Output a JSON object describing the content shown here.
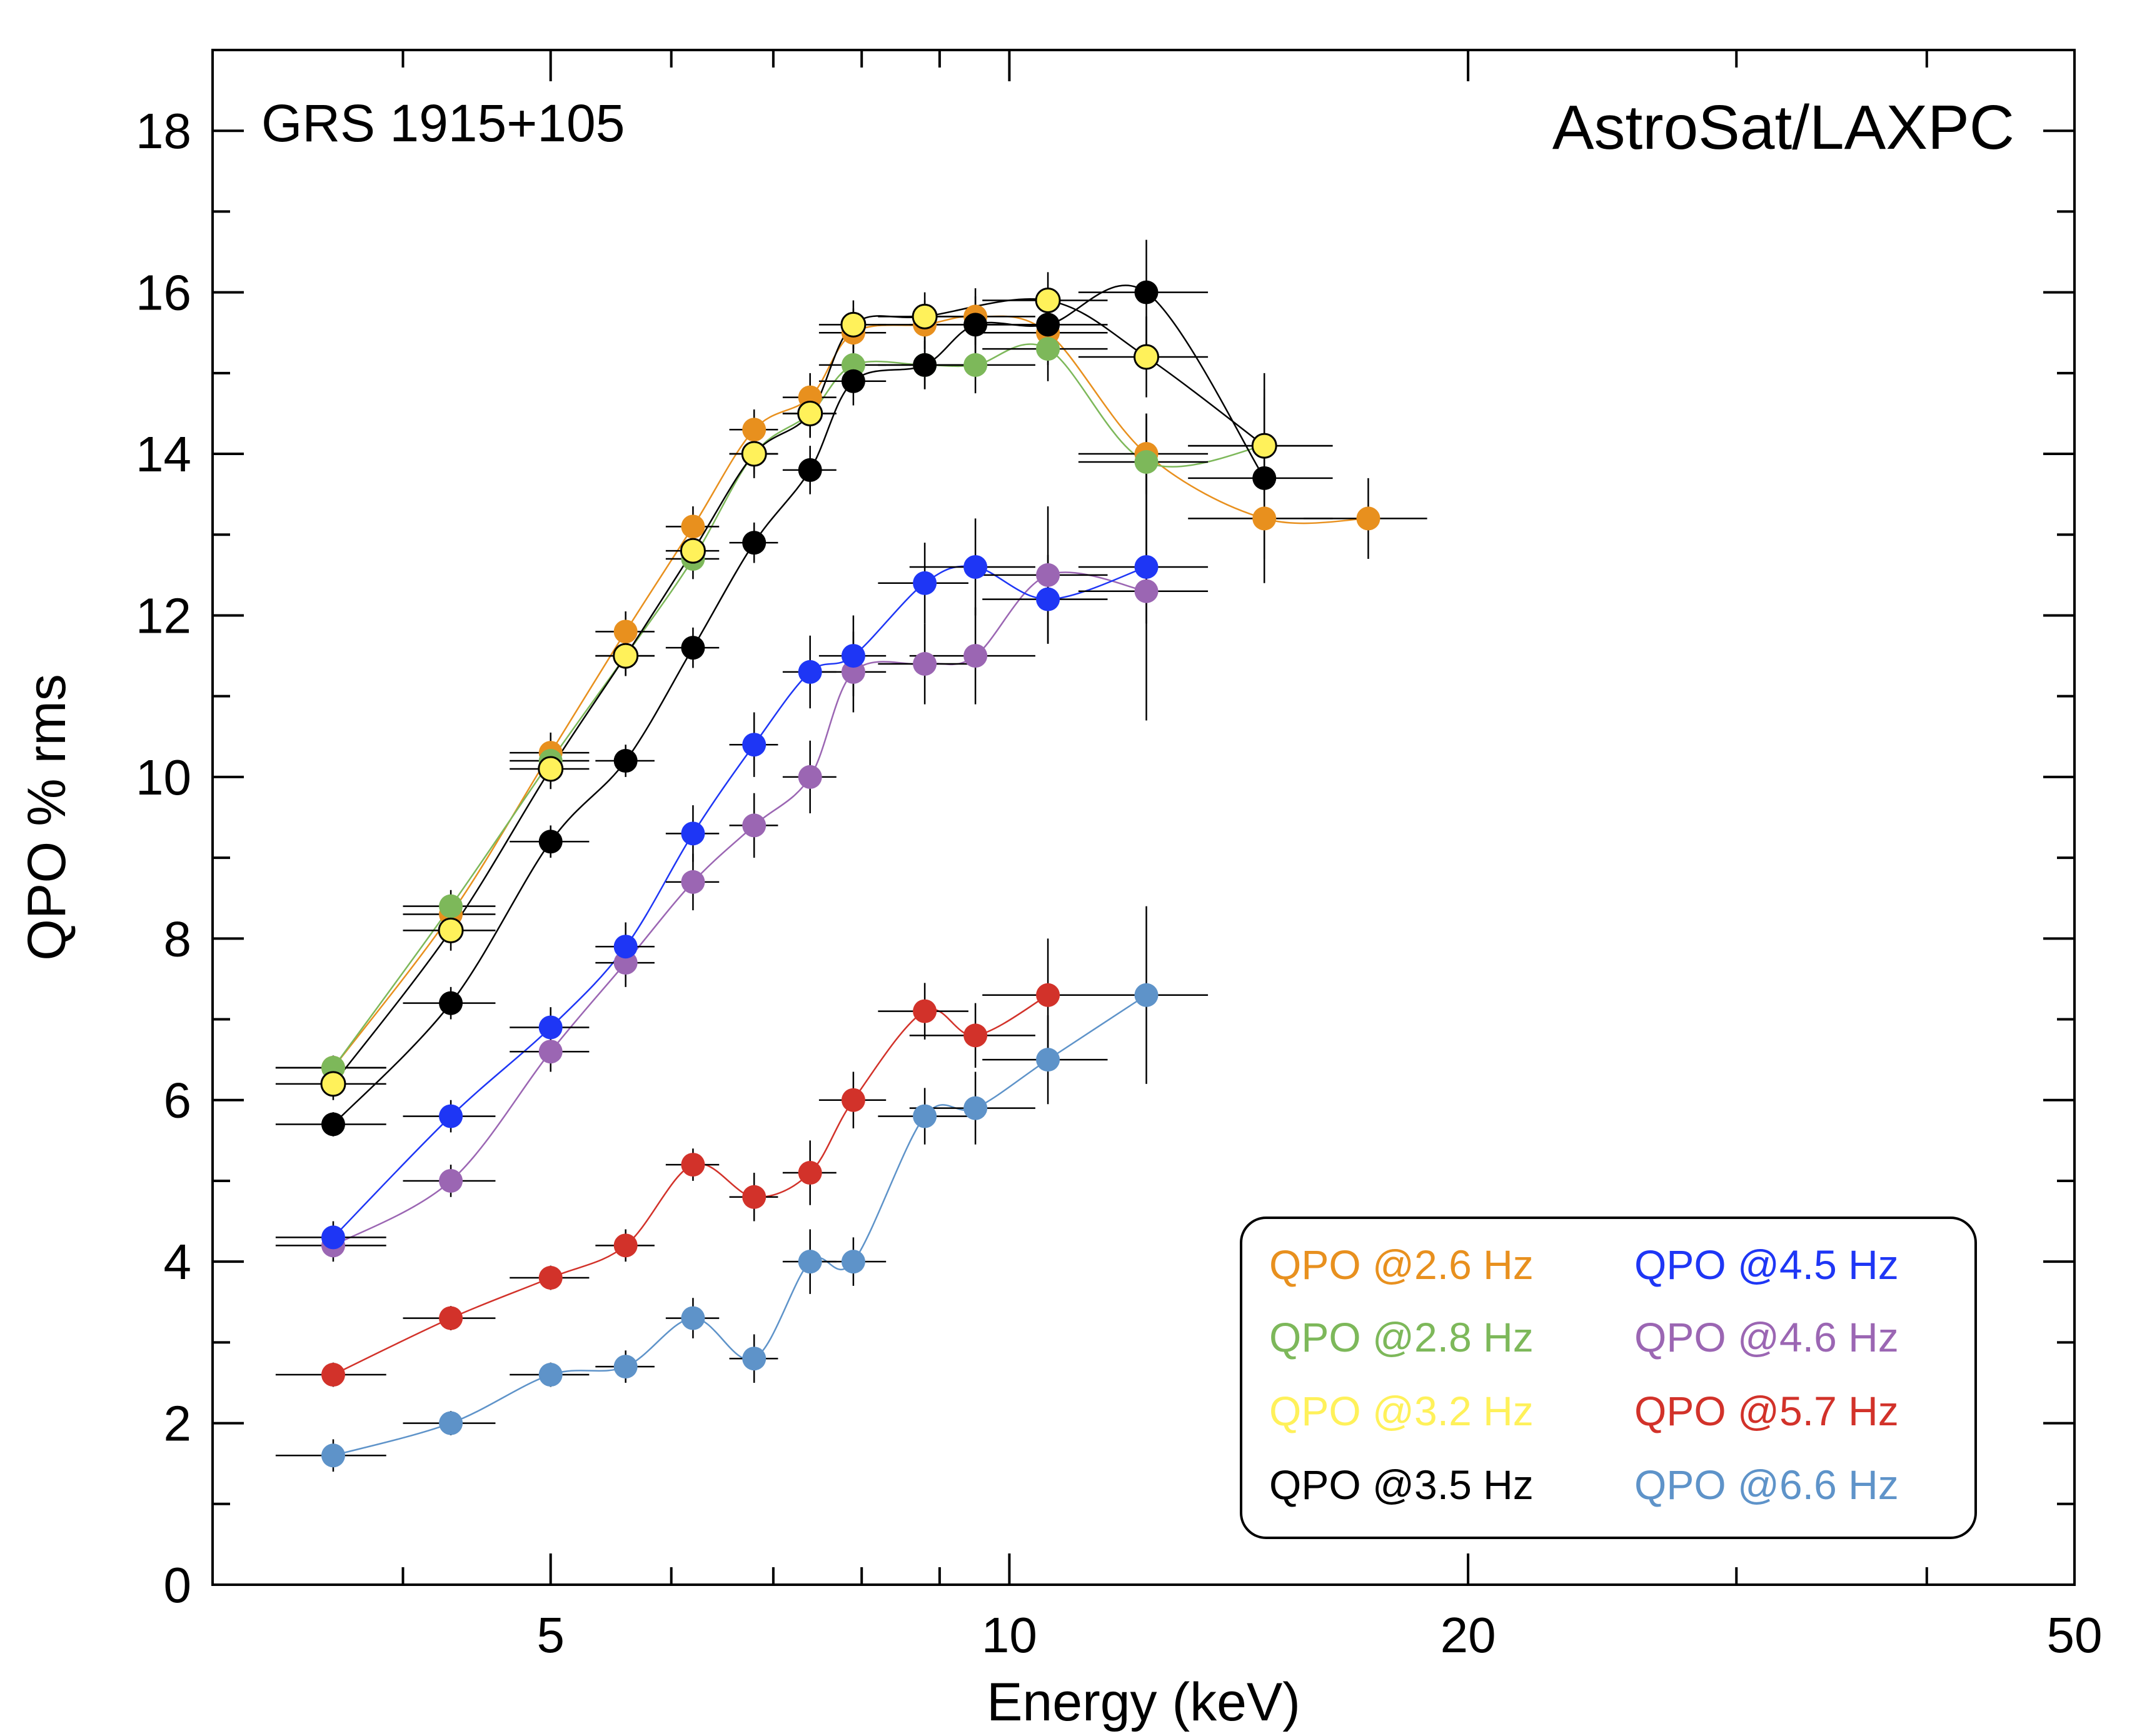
{
  "chart_data": {
    "type": "scatter",
    "xlabel": "Energy (keV)",
    "ylabel": "QPO % rms",
    "xscale": "log",
    "xlim": [
      3,
      50
    ],
    "ylim": [
      0,
      19
    ],
    "x_ticks": [
      5,
      10,
      20,
      50
    ],
    "y_ticks": [
      0,
      2,
      4,
      6,
      8,
      10,
      12,
      14,
      16,
      18
    ],
    "grid": false,
    "legend_position": "bottom-right",
    "annotations": {
      "source": "GRS 1915+105",
      "instrument": "AstroSat/LAXPC"
    },
    "series": [
      {
        "name": "QPO @2.6 Hz",
        "color": "#E8901E",
        "x": [
          3.6,
          4.3,
          5.0,
          5.6,
          6.2,
          6.8,
          7.4,
          7.9,
          8.8,
          9.5,
          10.6,
          12.3,
          14.7,
          17.2
        ],
        "y": [
          6.4,
          8.3,
          10.3,
          11.8,
          13.1,
          14.3,
          14.7,
          15.5,
          15.6,
          15.7,
          15.5,
          14.0,
          13.2,
          13.2
        ],
        "xerr": [
          0.3,
          0.3,
          0.3,
          0.25,
          0.25,
          0.25,
          0.3,
          0.4,
          0.6,
          0.9,
          1.0,
          1.2,
          1.6,
          1.6
        ],
        "yerr": [
          0.15,
          0.2,
          0.25,
          0.25,
          0.25,
          0.25,
          0.3,
          0.3,
          0.3,
          0.35,
          0.4,
          0.5,
          0.5,
          0.5
        ]
      },
      {
        "name": "QPO @2.8 Hz",
        "color": "#7DB85A",
        "x": [
          3.6,
          4.3,
          5.0,
          5.6,
          6.2,
          6.8,
          7.4,
          7.9,
          8.8,
          9.5,
          10.6,
          12.3,
          14.7
        ],
        "y": [
          6.4,
          8.4,
          10.2,
          11.5,
          12.7,
          14.0,
          14.5,
          15.1,
          15.1,
          15.1,
          15.3,
          13.9,
          14.1
        ],
        "xerr": [
          0.3,
          0.3,
          0.3,
          0.25,
          0.25,
          0.25,
          0.3,
          0.4,
          0.6,
          0.9,
          1.0,
          1.2,
          1.6
        ],
        "yerr": [
          0.15,
          0.2,
          0.25,
          0.25,
          0.25,
          0.25,
          0.3,
          0.3,
          0.3,
          0.35,
          0.4,
          0.6,
          0.7
        ]
      },
      {
        "name": "QPO @3.2 Hz",
        "color": "#FFF15A",
        "x": [
          3.6,
          4.3,
          5.0,
          5.6,
          6.2,
          6.8,
          7.4,
          7.9,
          8.8,
          10.6,
          12.3,
          14.7
        ],
        "y": [
          6.2,
          8.1,
          10.1,
          11.5,
          12.8,
          14.0,
          14.5,
          15.6,
          15.7,
          15.9,
          15.2,
          14.1
        ],
        "xerr": [
          0.3,
          0.3,
          0.3,
          0.25,
          0.25,
          0.25,
          0.3,
          0.4,
          0.6,
          1.0,
          1.2,
          1.6
        ],
        "yerr": [
          0.2,
          0.25,
          0.25,
          0.25,
          0.25,
          0.3,
          0.3,
          0.3,
          0.3,
          0.35,
          0.5,
          0.6
        ]
      },
      {
        "name": "QPO @3.5 Hz",
        "color": "#000000",
        "x": [
          3.6,
          4.3,
          5.0,
          5.6,
          6.2,
          6.8,
          7.4,
          7.9,
          8.8,
          9.5,
          10.6,
          12.3,
          14.7
        ],
        "y": [
          5.7,
          7.2,
          9.2,
          10.2,
          11.6,
          12.9,
          13.8,
          14.9,
          15.1,
          15.6,
          15.6,
          16.0,
          13.7
        ],
        "xerr": [
          0.3,
          0.3,
          0.3,
          0.25,
          0.25,
          0.25,
          0.3,
          0.4,
          0.6,
          0.9,
          1.0,
          1.2,
          1.6
        ],
        "yerr": [
          0.15,
          0.2,
          0.2,
          0.2,
          0.25,
          0.25,
          0.3,
          0.3,
          0.3,
          0.35,
          0.4,
          0.65,
          1.3
        ]
      },
      {
        "name": "QPO @4.5 Hz",
        "color": "#1E36F5",
        "x": [
          3.6,
          4.3,
          5.0,
          5.6,
          6.2,
          6.8,
          7.4,
          7.9,
          8.8,
          9.5,
          10.6,
          12.3
        ],
        "y": [
          4.3,
          5.8,
          6.9,
          7.9,
          9.3,
          10.4,
          11.3,
          11.5,
          12.4,
          12.6,
          12.2,
          12.6
        ],
        "xerr": [
          0.3,
          0.3,
          0.3,
          0.25,
          0.25,
          0.25,
          0.3,
          0.4,
          0.6,
          0.9,
          1.0,
          1.2
        ],
        "yerr": [
          0.2,
          0.2,
          0.25,
          0.3,
          0.35,
          0.4,
          0.45,
          0.5,
          0.5,
          0.6,
          0.55,
          0.7
        ]
      },
      {
        "name": "QPO @4.6 Hz",
        "color": "#9B66B3",
        "x": [
          3.6,
          4.3,
          5.0,
          5.6,
          6.2,
          6.8,
          7.4,
          7.9,
          8.8,
          9.5,
          10.6,
          12.3
        ],
        "y": [
          4.2,
          5.0,
          6.6,
          7.7,
          8.7,
          9.4,
          10.0,
          11.3,
          11.4,
          11.5,
          12.5,
          12.3
        ],
        "xerr": [
          0.3,
          0.3,
          0.3,
          0.25,
          0.25,
          0.25,
          0.3,
          0.4,
          0.6,
          0.9,
          1.0,
          1.2
        ],
        "yerr": [
          0.2,
          0.2,
          0.25,
          0.3,
          0.35,
          0.4,
          0.45,
          0.5,
          0.5,
          0.6,
          0.85,
          1.6
        ]
      },
      {
        "name": "QPO @5.7 Hz",
        "color": "#D2322A",
        "x": [
          3.6,
          4.3,
          5.0,
          5.6,
          6.2,
          6.8,
          7.4,
          7.9,
          8.8,
          9.5,
          10.6
        ],
        "y": [
          2.6,
          3.3,
          3.8,
          4.2,
          5.2,
          4.8,
          5.1,
          6.0,
          7.1,
          6.8,
          7.3
        ],
        "xerr": [
          0.3,
          0.3,
          0.3,
          0.25,
          0.25,
          0.25,
          0.3,
          0.4,
          0.6,
          0.9,
          1.0
        ],
        "yerr": [
          0.15,
          0.15,
          0.15,
          0.2,
          0.2,
          0.3,
          0.4,
          0.35,
          0.35,
          0.4,
          0.7
        ]
      },
      {
        "name": "QPO @6.6 Hz",
        "color": "#5E93C9",
        "x": [
          3.6,
          4.3,
          5.0,
          5.6,
          6.2,
          6.8,
          7.4,
          7.9,
          8.8,
          9.5,
          10.6,
          12.3
        ],
        "y": [
          1.6,
          2.0,
          2.6,
          2.7,
          3.3,
          2.8,
          4.0,
          4.0,
          5.8,
          5.9,
          6.5,
          7.3
        ],
        "xerr": [
          0.3,
          0.3,
          0.3,
          0.25,
          0.25,
          0.25,
          0.3,
          0.4,
          0.6,
          0.9,
          1.0,
          1.2
        ],
        "yerr": [
          0.2,
          0.15,
          0.15,
          0.2,
          0.25,
          0.3,
          0.4,
          0.3,
          0.35,
          0.45,
          0.55,
          1.1
        ]
      }
    ]
  }
}
